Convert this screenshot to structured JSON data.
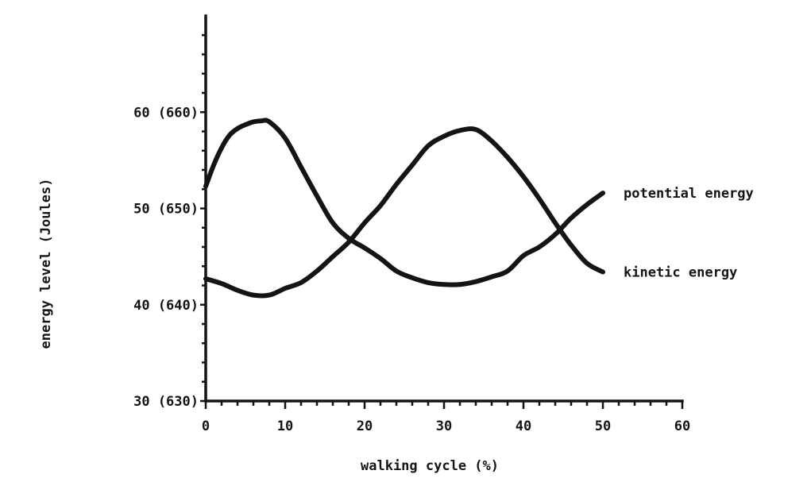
{
  "chart_data": {
    "type": "line",
    "title": "",
    "xlabel": "walking cycle (%)",
    "ylabel": "energy level (Joules)",
    "xlim": [
      0,
      60
    ],
    "ylim": [
      30,
      70
    ],
    "x_ticks": [
      "0",
      "10",
      "20",
      "30",
      "40",
      "50",
      "60"
    ],
    "y_ticks": [
      {
        "value": 30,
        "label": "30 (630)"
      },
      {
        "value": 40,
        "label": "40 (640)"
      },
      {
        "value": 50,
        "label": "50 (650)"
      },
      {
        "value": 60,
        "label": "60 (660)"
      }
    ],
    "grid": false,
    "series": [
      {
        "name": "kinetic energy",
        "x": [
          0,
          2,
          4,
          6,
          8,
          10,
          12,
          14,
          16,
          18,
          20,
          22,
          24,
          26,
          28,
          30,
          32,
          34,
          36,
          38,
          40,
          42,
          44,
          46,
          48,
          50
        ],
        "y": [
          42.7,
          42.2,
          41.5,
          41.0,
          41.0,
          41.7,
          42.3,
          43.5,
          45.0,
          46.5,
          48.5,
          50.3,
          52.5,
          54.5,
          56.5,
          57.5,
          58.1,
          58.2,
          57.0,
          55.3,
          53.3,
          51.0,
          48.5,
          46.2,
          44.3,
          43.4
        ]
      },
      {
        "name": "potential energy",
        "x": [
          0,
          1,
          2,
          3,
          4,
          5,
          6,
          7,
          8,
          10,
          12,
          14,
          16,
          18,
          20,
          22,
          24,
          26,
          28,
          30,
          32,
          34,
          36,
          38,
          40,
          42,
          44,
          46,
          48,
          50
        ],
        "y": [
          52.3,
          54.5,
          56.3,
          57.6,
          58.3,
          58.7,
          59.0,
          59.1,
          59.0,
          57.3,
          54.3,
          51.3,
          48.5,
          46.9,
          45.9,
          44.8,
          43.5,
          42.8,
          42.3,
          42.1,
          42.1,
          42.4,
          42.9,
          43.5,
          45.1,
          46.0,
          47.3,
          49.0,
          50.4,
          51.6
        ]
      }
    ]
  }
}
